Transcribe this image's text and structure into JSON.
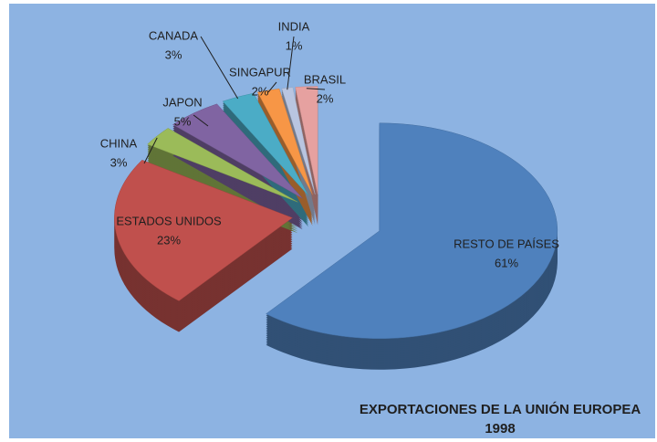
{
  "chart_data": {
    "type": "pie",
    "title": "EXPORTACIONES DE LA UNIÓN EUROPEA",
    "subtitle": "1998",
    "categories": [
      "RESTO DE PAÍSES",
      "ESTADOS UNIDOS",
      "CHINA",
      "JAPON",
      "CANADA",
      "SINGAPUR",
      "INDIA",
      "BRASIL"
    ],
    "values": [
      61,
      23,
      3,
      5,
      3,
      2,
      1,
      2
    ],
    "value_labels": [
      "61%",
      "23%",
      "3%",
      "5%",
      "3%",
      "2%",
      "1%",
      "2%"
    ],
    "colors": [
      "#4f81bd",
      "#c0504d",
      "#9bbb59",
      "#8064a2",
      "#4bacc6",
      "#f79646",
      "#b9c5e0",
      "#e6a1a0"
    ]
  }
}
